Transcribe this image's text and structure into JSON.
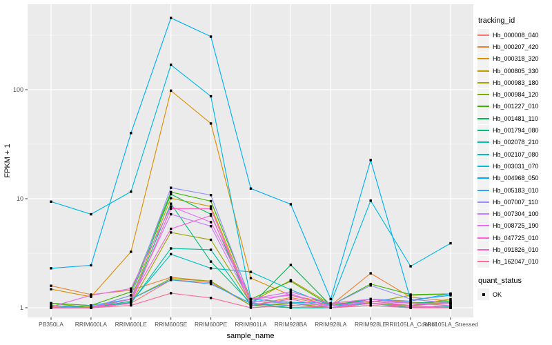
{
  "chart_data": {
    "type": "line",
    "xlabel": "sample_name",
    "ylabel": "FPKM + 1",
    "yscale": "log10",
    "y_ticks": [
      1,
      10,
      100
    ],
    "y_minor_exp": [
      0.5,
      1.5,
      2.5
    ],
    "grid": true,
    "legend_position": "right",
    "legend_title": "tracking_id",
    "quant_legend": {
      "title": "quant_status",
      "label": "OK",
      "marker": "black-square"
    },
    "colors": {
      "panel_bg": "#EBEBEB",
      "grid": "#FFFFFF",
      "tick_text": "#4D4D4D",
      "point": "#000000"
    },
    "categories": [
      "PB350LA",
      "RRIM600LA",
      "RRIM600LE",
      "RRIM600SE",
      "RRIM600PE",
      "RRIM901LA",
      "RRIM928BA",
      "RRIM928LA",
      "RRIM928LE",
      "RRII105LA_Control",
      "RRII105LA_Stressed"
    ],
    "series": [
      {
        "name": "Hb_000008_040",
        "color": "#F8766D",
        "values": [
          1.02,
          1.0,
          1.1,
          1.8,
          1.7,
          1.05,
          1.1,
          1.0,
          1.1,
          1.05,
          1.1
        ]
      },
      {
        "name": "Hb_000207_420",
        "color": "#EA8331",
        "values": [
          1.59,
          1.32,
          1.45,
          1.9,
          1.75,
          1.05,
          1.24,
          1.05,
          2.07,
          1.25,
          1.15
        ]
      },
      {
        "name": "Hb_000318_320",
        "color": "#D89000",
        "values": [
          1.48,
          1.26,
          3.26,
          98,
          49,
          1.87,
          1.3,
          1.1,
          1.2,
          1.12,
          1.1
        ]
      },
      {
        "name": "Hb_000805_330",
        "color": "#C09B00",
        "values": [
          1.0,
          1.02,
          1.2,
          10.1,
          8.5,
          1.12,
          1.79,
          1.08,
          1.15,
          1.05,
          1.2
        ]
      },
      {
        "name": "Hb_000983_180",
        "color": "#A3A500",
        "values": [
          1.0,
          1.0,
          1.1,
          4.9,
          4.2,
          1.1,
          1.05,
          1.0,
          1.12,
          1.3,
          1.34
        ]
      },
      {
        "name": "Hb_000984_120",
        "color": "#7CAE00",
        "values": [
          1.1,
          1.0,
          1.2,
          1.85,
          1.75,
          1.05,
          1.1,
          1.0,
          1.1,
          1.05,
          1.12
        ]
      },
      {
        "name": "Hb_001227_010",
        "color": "#39B600",
        "values": [
          1.1,
          1.05,
          1.4,
          11.5,
          9.5,
          1.2,
          1.75,
          1.05,
          1.65,
          1.32,
          1.34
        ]
      },
      {
        "name": "Hb_001481_110",
        "color": "#00BB4E",
        "values": [
          1.05,
          1.0,
          1.3,
          11.0,
          7.2,
          1.05,
          2.47,
          1.05,
          1.2,
          1.1,
          1.15
        ]
      },
      {
        "name": "Hb_001794_080",
        "color": "#00BF7D",
        "values": [
          1.0,
          1.0,
          1.15,
          9.0,
          2.65,
          1.1,
          1.0,
          1.0,
          1.05,
          1.0,
          1.05
        ]
      },
      {
        "name": "Hb_002078_210",
        "color": "#00C1A3",
        "values": [
          1.0,
          1.0,
          1.1,
          3.5,
          3.4,
          1.05,
          1.0,
          1.0,
          1.1,
          1.0,
          1.02
        ]
      },
      {
        "name": "Hb_002107_080",
        "color": "#00BFC4",
        "values": [
          1.0,
          1.0,
          1.12,
          3.1,
          2.3,
          2.13,
          1.46,
          1.05,
          1.1,
          1.02,
          1.0
        ]
      },
      {
        "name": "Hb_003031_070",
        "color": "#00BAE0",
        "values": [
          9.4,
          7.2,
          11.6,
          169,
          87,
          1.2,
          1.12,
          1.1,
          9.6,
          2.4,
          3.9
        ]
      },
      {
        "name": "Hb_004968_050",
        "color": "#00B0F6",
        "values": [
          2.3,
          2.45,
          40,
          455,
          307,
          12.4,
          8.9,
          1.2,
          22.6,
          1.18,
          1.3
        ]
      },
      {
        "name": "Hb_005183_010",
        "color": "#35A2FF",
        "values": [
          1.0,
          1.05,
          1.2,
          1.8,
          1.65,
          1.1,
          1.05,
          1.0,
          1.2,
          1.15,
          1.35
        ]
      },
      {
        "name": "Hb_007007_110",
        "color": "#9590FF",
        "values": [
          1.0,
          1.0,
          1.3,
          12.6,
          10.8,
          1.15,
          1.1,
          1.05,
          1.6,
          1.2,
          1.1
        ]
      },
      {
        "name": "Hb_007304_100",
        "color": "#C77CFF",
        "values": [
          1.0,
          1.0,
          1.2,
          7.2,
          5.6,
          1.1,
          1.35,
          1.0,
          1.15,
          1.1,
          1.1
        ]
      },
      {
        "name": "Hb_008725_190",
        "color": "#E76BF3",
        "values": [
          1.02,
          1.3,
          1.5,
          8.5,
          6.1,
          1.2,
          1.4,
          1.1,
          1.2,
          1.1,
          1.05
        ]
      },
      {
        "name": "Hb_047725_010",
        "color": "#FA62DB",
        "values": [
          1.0,
          1.0,
          1.2,
          5.3,
          7.0,
          1.2,
          1.3,
          1.05,
          1.15,
          1.05,
          1.0
        ]
      },
      {
        "name": "Hb_091826_010",
        "color": "#FF62BC",
        "values": [
          1.0,
          1.0,
          1.1,
          8.1,
          8.1,
          1.05,
          1.2,
          1.0,
          1.1,
          1.02,
          1.0
        ]
      },
      {
        "name": "Hb_162047_010",
        "color": "#FF6A98",
        "values": [
          1.0,
          1.0,
          1.05,
          1.36,
          1.23,
          1.0,
          1.05,
          1.0,
          1.05,
          1.0,
          1.0
        ]
      }
    ]
  }
}
